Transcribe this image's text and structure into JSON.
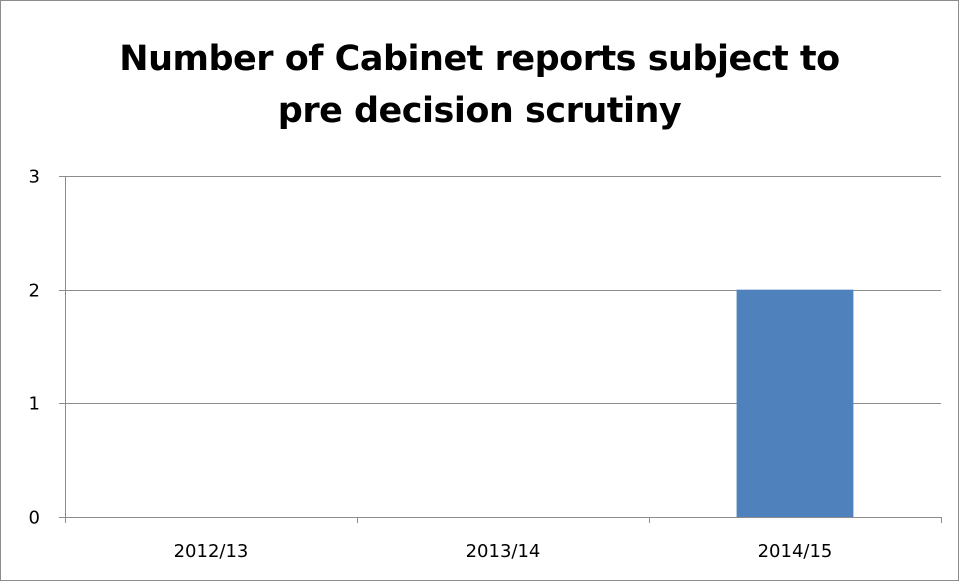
{
  "chart_data": {
    "type": "bar",
    "title_lines": [
      "Number of Cabinet reports subject to",
      "pre decision scrutiny"
    ],
    "categories": [
      "2012/13",
      "2013/14",
      "2014/15"
    ],
    "values": [
      0,
      0,
      2
    ],
    "ylim": [
      0,
      3
    ],
    "yticks": [
      0,
      1,
      2,
      3
    ],
    "grid": true,
    "legend": "none",
    "bar_color": "#4f81bd",
    "gridline_color": "#8c8c8c"
  }
}
